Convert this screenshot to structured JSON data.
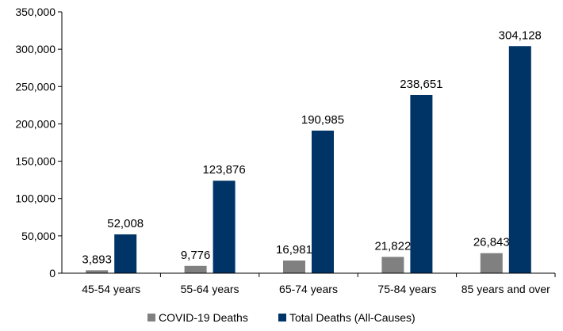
{
  "chart_data": {
    "type": "bar",
    "categories": [
      "45-54 years",
      "55-64 years",
      "65-74 years",
      "75-84 years",
      "85 years and over"
    ],
    "series": [
      {
        "name": "COVID-19 Deaths",
        "color": "#808080",
        "values": [
          3893,
          9776,
          16981,
          21822,
          26843
        ]
      },
      {
        "name": "Total Deaths (All-Causes)",
        "color": "#003366",
        "values": [
          52008,
          123876,
          190985,
          238651,
          304128
        ]
      }
    ],
    "value_labels": [
      [
        "3,893",
        "9,776",
        "16,981",
        "21,822",
        "26,843"
      ],
      [
        "52,008",
        "123,876",
        "190,985",
        "238,651",
        "304,128"
      ]
    ],
    "ylim": [
      0,
      350000
    ],
    "yticks": [
      0,
      50000,
      100000,
      150000,
      200000,
      250000,
      300000,
      350000
    ],
    "ytick_labels": [
      "0",
      "50,000",
      "100,000",
      "150,000",
      "200,000",
      "250,000",
      "300,000",
      "350,000"
    ],
    "grid": false,
    "legend_position": "bottom"
  }
}
